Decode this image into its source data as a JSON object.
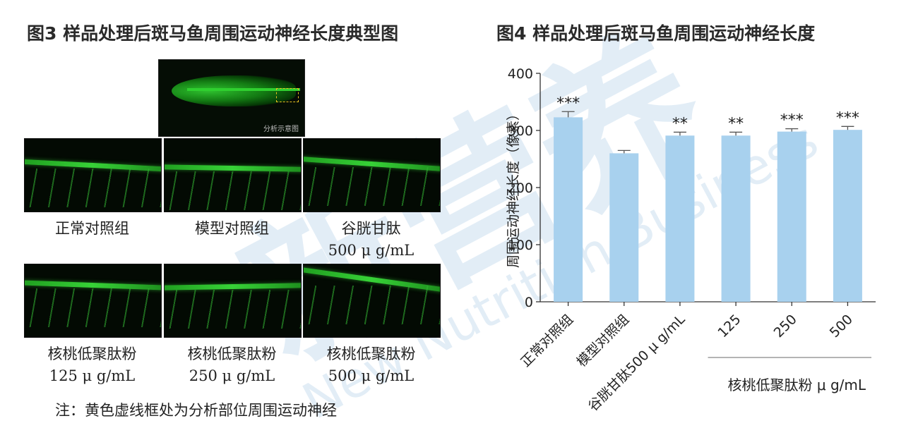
{
  "figure3": {
    "title": "图3 样品处理后斑马鱼周围运动神经长度典型图",
    "overview_label": "分析示意图",
    "panels": [
      {
        "line1": "正常对照组",
        "line2": ""
      },
      {
        "line1": "模型对照组",
        "line2": ""
      },
      {
        "line1": "谷胱甘肽",
        "line2": "500 μ g/mL"
      },
      {
        "line1": "核桃低聚肽粉",
        "line2": "125 μ g/mL"
      },
      {
        "line1": "核桃低聚肽粉",
        "line2": "250 μ g/mL"
      },
      {
        "line1": "核桃低聚肽粉",
        "line2": "500 μ g/mL"
      }
    ],
    "note": "注：黄色虚线框处为分析部位周围运动神经"
  },
  "figure4": {
    "title": "图4 样品处理后斑马鱼周围运动神经长度"
  },
  "chart_data": {
    "type": "bar",
    "title": "图4 样品处理后斑马鱼周围运动神经长度",
    "ylabel": "周围运动神经长度（像素）",
    "xlabel": "",
    "ylim": [
      0,
      400
    ],
    "yticks": [
      0,
      100,
      200,
      300,
      400
    ],
    "categories": [
      "正常对照组",
      "模型对照组",
      "谷胱甘肽500 μ g/mL",
      "125",
      "250",
      "500"
    ],
    "values": [
      323,
      260,
      291,
      291,
      298,
      301
    ],
    "errors": [
      10,
      5,
      6,
      6,
      5,
      6
    ],
    "significance": [
      "***",
      "",
      "**",
      "**",
      "***",
      "***"
    ],
    "group_label": "核桃低聚肽粉 μ g/mL",
    "bar_color": "#a8d1ee",
    "grid": false
  },
  "watermark": {
    "line1": "新营养",
    "line2": "New Nutrition Business"
  }
}
